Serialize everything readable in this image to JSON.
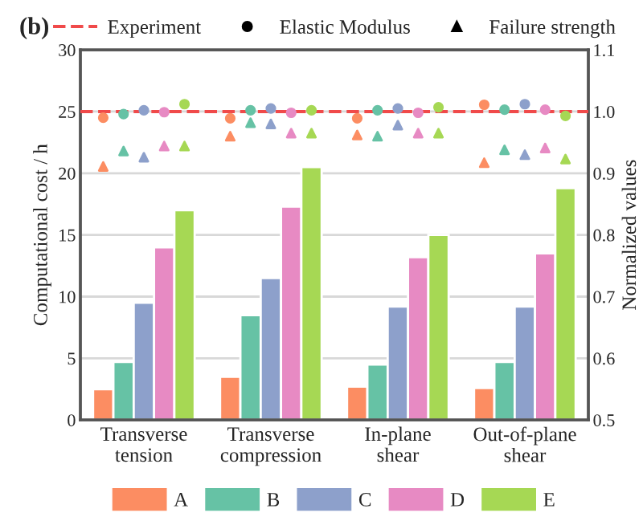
{
  "chart_data": {
    "type": "bar",
    "title": "(b)",
    "ylabel": "Computational cost / h",
    "y2label": "Normalized values",
    "categories": [
      "Transverse\ntension",
      "Transverse\ncompression",
      "In-plane\nshear",
      "Out-of-plane\nshear"
    ],
    "series": [
      {
        "name": "A",
        "color": "#fc8d62",
        "values": [
          2.5,
          3.5,
          2.7,
          2.6
        ]
      },
      {
        "name": "B",
        "color": "#66c2a5",
        "values": [
          4.7,
          8.5,
          4.5,
          4.7
        ]
      },
      {
        "name": "C",
        "color": "#8da0cb",
        "values": [
          9.5,
          11.5,
          9.2,
          9.2
        ]
      },
      {
        "name": "D",
        "color": "#e78ac3",
        "values": [
          14,
          17.3,
          13.2,
          13.5
        ]
      },
      {
        "name": "E",
        "color": "#a6d854",
        "values": [
          17,
          20.5,
          15,
          18.8
        ]
      },
      {
        "type": "scatter",
        "axis": "y2",
        "marker": "circle",
        "color": "#fc8d62",
        "values": [
          0.99,
          0.989,
          0.989,
          1.011
        ]
      },
      {
        "type": "scatter",
        "axis": "y2",
        "marker": "circle",
        "color": "#66c2a5",
        "values": [
          0.996,
          1.002,
          1.002,
          1.003
        ]
      },
      {
        "type": "scatter",
        "axis": "y2",
        "marker": "circle",
        "color": "#8da0cb",
        "values": [
          1.002,
          1.005,
          1.005,
          1.012
        ]
      },
      {
        "type": "scatter",
        "axis": "y2",
        "marker": "circle",
        "color": "#e78ac3",
        "values": [
          0.999,
          0.998,
          0.998,
          1.003
        ]
      },
      {
        "type": "scatter",
        "axis": "y2",
        "marker": "circle",
        "color": "#a6d854",
        "values": [
          1.012,
          1.002,
          1.007,
          0.993
        ]
      },
      {
        "type": "scatter",
        "axis": "y2",
        "marker": "triangle",
        "color": "#fc8d62",
        "values": [
          0.911,
          0.96,
          0.962,
          0.917
        ]
      },
      {
        "type": "scatter",
        "axis": "y2",
        "marker": "triangle",
        "color": "#66c2a5",
        "values": [
          0.936,
          0.982,
          0.96,
          0.938
        ]
      },
      {
        "type": "scatter",
        "axis": "y2",
        "marker": "triangle",
        "color": "#8da0cb",
        "values": [
          0.926,
          0.98,
          0.978,
          0.93
        ]
      },
      {
        "type": "scatter",
        "axis": "y2",
        "marker": "triangle",
        "color": "#e78ac3",
        "values": [
          0.944,
          0.965,
          0.965,
          0.941
        ]
      },
      {
        "type": "scatter",
        "axis": "y2",
        "marker": "triangle",
        "color": "#a6d854",
        "values": [
          0.944,
          0.965,
          0.965,
          0.923
        ]
      }
    ],
    "annotations": [
      "Elastic Modulus",
      "Failure strength"
    ],
    "ylim": [
      0,
      30
    ],
    "yticks": [
      0,
      5,
      10,
      15,
      20,
      25,
      30
    ],
    "y2lim": [
      0.5,
      1.1
    ],
    "y2ticks": [
      0.5,
      0.6,
      0.7,
      0.8,
      0.9,
      {
        "value": 1.0,
        "label": "1.0"
      },
      1.1
    ],
    "ref_lines": [
      {
        "axis": "y2",
        "value": 1.0,
        "label": "Experiment",
        "color": "#f04a4a",
        "line_style": "dashed"
      }
    ],
    "grid": "y",
    "legend": "bottom"
  }
}
